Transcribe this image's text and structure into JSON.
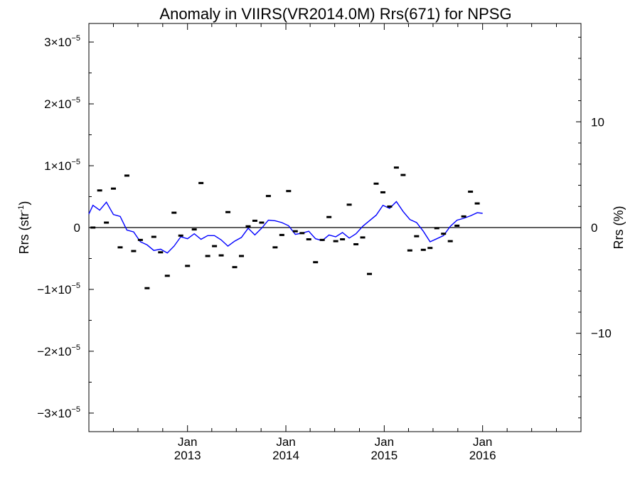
{
  "chart_data": {
    "type": "scatter",
    "title": "Anomaly in VIIRS(VR2014.0M) Rrs(671) for NPSG",
    "ylabel_left": "Rrs (str",
    "ylabel_left_sup": "-1",
    "ylabel_left_end": ")",
    "ylabel_right": "Rrs (%)",
    "ylim_left": [
      -3.3e-05,
      3.3e-05
    ],
    "ylim_right": [
      -19.3,
      19.3
    ],
    "xlim": [
      "2012-01-01",
      "2016-12-31"
    ],
    "y_ticks_left": [
      {
        "value": 3e-05,
        "mantissa": "3×10",
        "exp": "−5"
      },
      {
        "value": 2e-05,
        "mantissa": "2×10",
        "exp": "−5"
      },
      {
        "value": 1e-05,
        "mantissa": "1×10",
        "exp": "−5"
      },
      {
        "value": 0,
        "mantissa": "0",
        "exp": ""
      },
      {
        "value": -1e-05,
        "mantissa": "−1×10",
        "exp": "−5"
      },
      {
        "value": -2e-05,
        "mantissa": "−2×10",
        "exp": "−5"
      },
      {
        "value": -3e-05,
        "mantissa": "−3×10",
        "exp": "−5"
      }
    ],
    "y_ticks_right": [
      {
        "value": 10,
        "label": "10"
      },
      {
        "value": 0,
        "label": "0"
      },
      {
        "value": -10,
        "label": "−10"
      }
    ],
    "x_ticks": [
      {
        "date": "2013-01-01",
        "label1": "Jan",
        "label2": "2013"
      },
      {
        "date": "2014-01-01",
        "label1": "Jan",
        "label2": "2014"
      },
      {
        "date": "2015-01-01",
        "label1": "Jan",
        "label2": "2015"
      },
      {
        "date": "2016-01-01",
        "label1": "Jan",
        "label2": "2016"
      }
    ],
    "zero_line": true,
    "series": [
      {
        "kind": "points",
        "color": "#000000",
        "points": [
          [
            "2012-01-16",
            0.0
          ],
          [
            "2012-02-10",
            6e-06
          ],
          [
            "2012-03-06",
            8e-07
          ],
          [
            "2012-04-01",
            6.3e-06
          ],
          [
            "2012-04-26",
            -3.2e-06
          ],
          [
            "2012-05-21",
            8.4e-06
          ],
          [
            "2012-06-15",
            -3.8e-06
          ],
          [
            "2012-07-10",
            -2e-06
          ],
          [
            "2012-08-04",
            -9.8e-06
          ],
          [
            "2012-08-29",
            -1.5e-06
          ],
          [
            "2012-09-23",
            -4e-06
          ],
          [
            "2012-10-18",
            -7.8e-06
          ],
          [
            "2012-11-12",
            2.4e-06
          ],
          [
            "2012-12-07",
            -1.3e-06
          ],
          [
            "2013-01-01",
            -6.2e-06
          ],
          [
            "2013-01-26",
            -3e-07
          ],
          [
            "2013-02-20",
            7.2e-06
          ],
          [
            "2013-03-17",
            -4.6e-06
          ],
          [
            "2013-04-11",
            -3e-06
          ],
          [
            "2013-05-06",
            -4.5e-06
          ],
          [
            "2013-05-31",
            2.5e-06
          ],
          [
            "2013-06-25",
            -6.4e-06
          ],
          [
            "2013-07-20",
            -4.6e-06
          ],
          [
            "2013-08-14",
            2e-07
          ],
          [
            "2013-09-08",
            1.1e-06
          ],
          [
            "2013-10-03",
            8e-07
          ],
          [
            "2013-10-28",
            5.1e-06
          ],
          [
            "2013-11-22",
            -3.2e-06
          ],
          [
            "2013-12-17",
            -1.2e-06
          ],
          [
            "2014-01-11",
            5.9e-06
          ],
          [
            "2014-02-05",
            -6e-07
          ],
          [
            "2014-03-02",
            -9e-07
          ],
          [
            "2014-03-27",
            -1.9e-06
          ],
          [
            "2014-04-21",
            -5.6e-06
          ],
          [
            "2014-05-16",
            -2e-06
          ],
          [
            "2014-06-10",
            1.7e-06
          ],
          [
            "2014-07-05",
            -2.2e-06
          ],
          [
            "2014-07-30",
            -1.9e-06
          ],
          [
            "2014-08-24",
            3.7e-06
          ],
          [
            "2014-09-18",
            -2.7e-06
          ],
          [
            "2014-10-13",
            -1.6e-06
          ],
          [
            "2014-11-07",
            -7.5e-06
          ],
          [
            "2014-12-02",
            7.1e-06
          ],
          [
            "2014-12-27",
            5.7e-06
          ],
          [
            "2015-01-21",
            3.4e-06
          ],
          [
            "2015-02-15",
            9.7e-06
          ],
          [
            "2015-03-12",
            8.5e-06
          ],
          [
            "2015-04-06",
            -3.7e-06
          ],
          [
            "2015-05-01",
            -1.4e-06
          ],
          [
            "2015-05-26",
            -3.6e-06
          ],
          [
            "2015-06-20",
            -3.3e-06
          ],
          [
            "2015-07-15",
            -1e-07
          ],
          [
            "2015-08-09",
            -1e-06
          ],
          [
            "2015-09-03",
            -2.2e-06
          ],
          [
            "2015-09-28",
            3e-07
          ],
          [
            "2015-10-23",
            1.8e-06
          ],
          [
            "2015-11-17",
            5.8e-06
          ],
          [
            "2015-12-12",
            3.9e-06
          ]
        ]
      },
      {
        "kind": "line",
        "color": "#0000ff",
        "points": [
          [
            "2012-01-01",
            2.2e-06
          ],
          [
            "2012-01-16",
            3.6e-06
          ],
          [
            "2012-02-10",
            2.8e-06
          ],
          [
            "2012-03-06",
            4.1e-06
          ],
          [
            "2012-04-01",
            2.1e-06
          ],
          [
            "2012-04-26",
            1.8e-06
          ],
          [
            "2012-05-21",
            -4e-07
          ],
          [
            "2012-06-15",
            -7e-07
          ],
          [
            "2012-07-10",
            -2.3e-06
          ],
          [
            "2012-08-04",
            -2.8e-06
          ],
          [
            "2012-08-29",
            -3.7e-06
          ],
          [
            "2012-09-23",
            -3.5e-06
          ],
          [
            "2012-10-18",
            -4.1e-06
          ],
          [
            "2012-11-12",
            -3e-06
          ],
          [
            "2012-12-07",
            -1.5e-06
          ],
          [
            "2013-01-01",
            -1.8e-06
          ],
          [
            "2013-01-26",
            -1e-06
          ],
          [
            "2013-02-20",
            -1.9e-06
          ],
          [
            "2013-03-17",
            -1.3e-06
          ],
          [
            "2013-04-11",
            -1.3e-06
          ],
          [
            "2013-05-06",
            -2e-06
          ],
          [
            "2013-05-31",
            -3e-06
          ],
          [
            "2013-06-25",
            -2.2e-06
          ],
          [
            "2013-07-20",
            -1.6e-06
          ],
          [
            "2013-08-14",
            -1e-07
          ],
          [
            "2013-09-08",
            -1.2e-06
          ],
          [
            "2013-10-03",
            -1e-07
          ],
          [
            "2013-10-28",
            1.2e-06
          ],
          [
            "2013-11-22",
            1.1e-06
          ],
          [
            "2013-12-17",
            8e-07
          ],
          [
            "2014-01-11",
            3e-07
          ],
          [
            "2014-02-05",
            -1.1e-06
          ],
          [
            "2014-03-02",
            -9e-07
          ],
          [
            "2014-03-27",
            -6e-07
          ],
          [
            "2014-04-21",
            -1.8e-06
          ],
          [
            "2014-05-16",
            -2.1e-06
          ],
          [
            "2014-06-10",
            -1.2e-06
          ],
          [
            "2014-07-05",
            -1.5e-06
          ],
          [
            "2014-07-30",
            -8e-07
          ],
          [
            "2014-08-24",
            -1.7e-06
          ],
          [
            "2014-09-18",
            -1e-06
          ],
          [
            "2014-10-13",
            2e-07
          ],
          [
            "2014-11-07",
            1.1e-06
          ],
          [
            "2014-12-02",
            2e-06
          ],
          [
            "2014-12-27",
            3.6e-06
          ],
          [
            "2015-01-21",
            3.1e-06
          ],
          [
            "2015-02-15",
            4.2e-06
          ],
          [
            "2015-03-12",
            2.6e-06
          ],
          [
            "2015-04-06",
            1.3e-06
          ],
          [
            "2015-05-01",
            8e-07
          ],
          [
            "2015-05-26",
            -6e-07
          ],
          [
            "2015-06-20",
            -2.3e-06
          ],
          [
            "2015-07-15",
            -1.8e-06
          ],
          [
            "2015-08-09",
            -1.3e-06
          ],
          [
            "2015-09-03",
            2e-07
          ],
          [
            "2015-09-28",
            1.2e-06
          ],
          [
            "2015-10-23",
            1.5e-06
          ],
          [
            "2015-11-17",
            1.9e-06
          ],
          [
            "2015-12-12",
            2.4e-06
          ],
          [
            "2016-01-01",
            2.3e-06
          ]
        ]
      }
    ]
  }
}
